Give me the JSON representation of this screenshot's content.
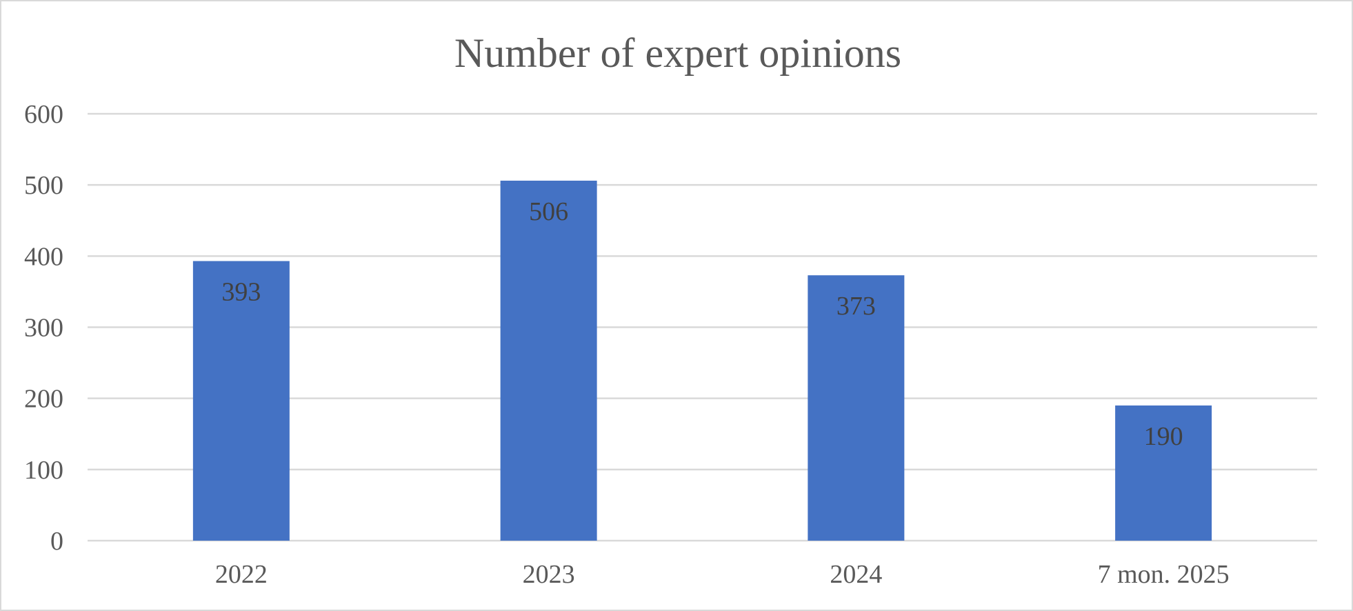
{
  "chart_data": {
    "type": "bar",
    "title": "Number of expert opinions",
    "xlabel": "",
    "ylabel": "",
    "categories": [
      "2022",
      "2023",
      "2024",
      "7 mon. 2025"
    ],
    "values": [
      393,
      506,
      373,
      190
    ],
    "ylim": [
      0,
      600
    ],
    "yticks": [
      0,
      100,
      200,
      300,
      400,
      500,
      600
    ],
    "grid": true,
    "legend": "none",
    "bar_color": "#4472c4",
    "gridline_color": "#d9d9d9",
    "data_labels": true
  }
}
